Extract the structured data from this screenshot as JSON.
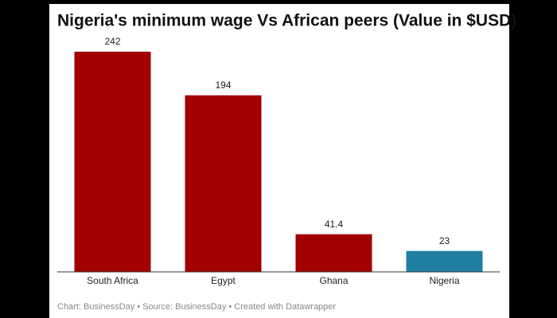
{
  "chart_data": {
    "type": "bar",
    "title": "Nigeria's minimum wage Vs African peers (Value in $USD)",
    "categories": [
      "South Africa",
      "Egypt",
      "Ghana",
      "Nigeria"
    ],
    "values": [
      242,
      194,
      41.4,
      23
    ],
    "colors": [
      "#a30000",
      "#a30000",
      "#a30000",
      "#1f7ea1"
    ],
    "footer": "Chart: BusinessDay • Source: BusinessDay • Created with Datawrapper"
  }
}
